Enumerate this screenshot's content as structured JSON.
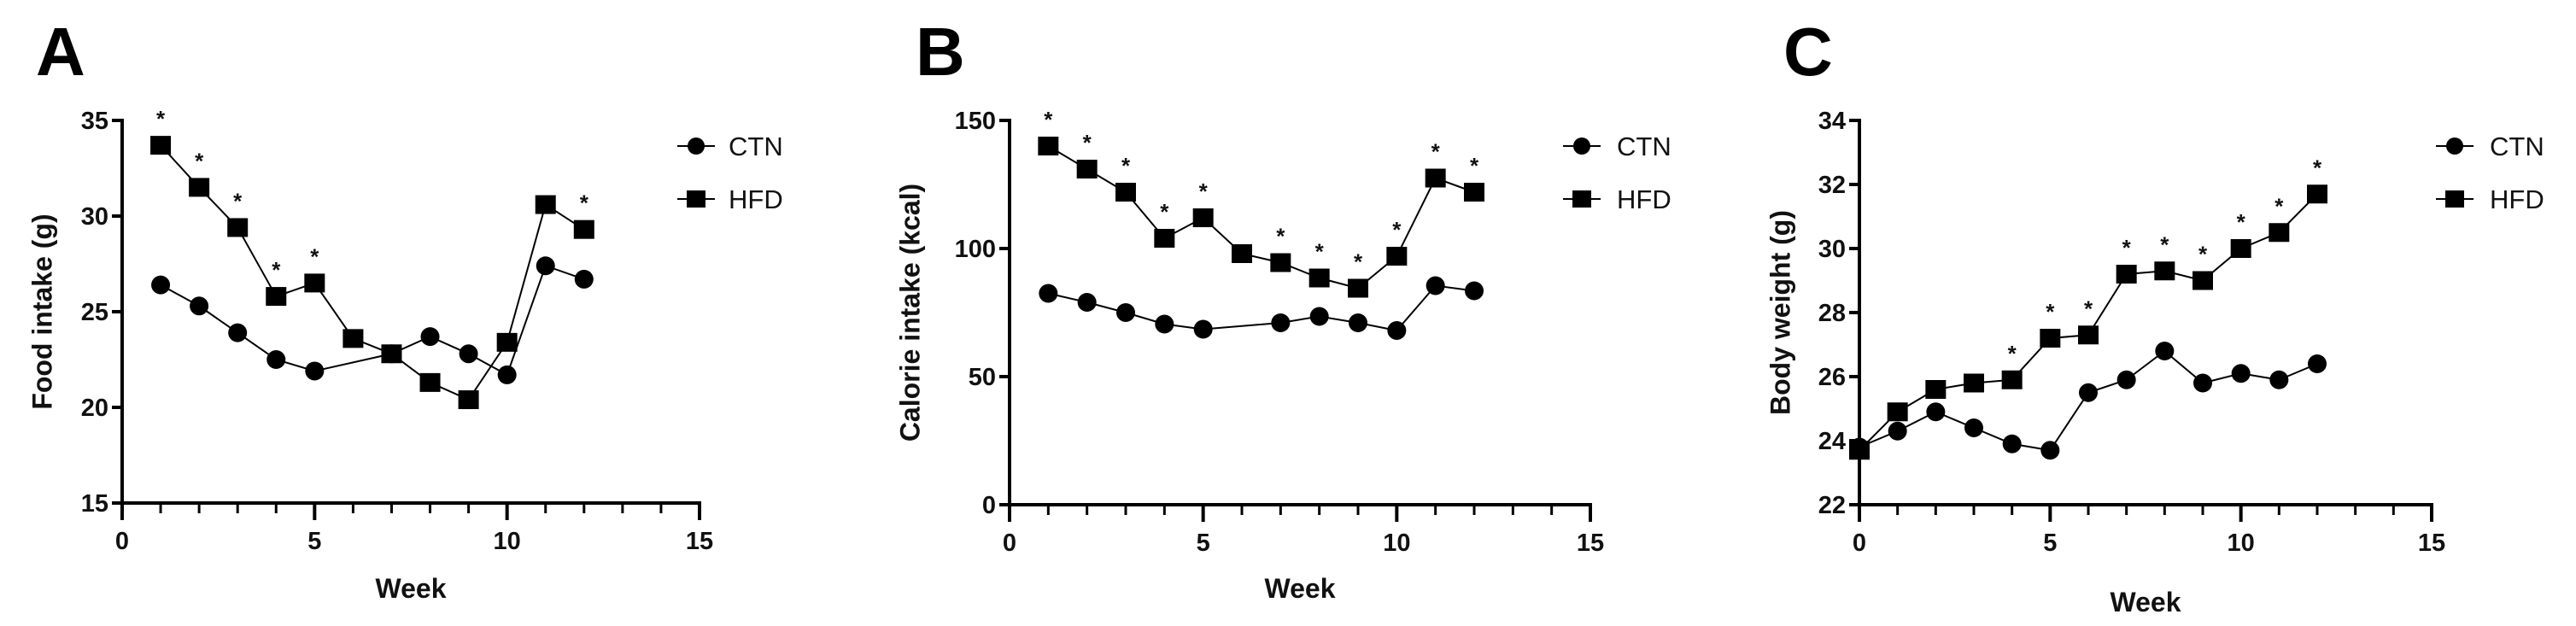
{
  "chart_data": [
    {
      "type": "line",
      "panel_label": "A",
      "xlabel": "Week",
      "ylabel": "Food intake (g)",
      "xlim": [
        0,
        15
      ],
      "ylim": [
        15,
        35
      ],
      "xticks": [
        0,
        5,
        10,
        15
      ],
      "yticks": [
        15,
        20,
        25,
        30,
        35
      ],
      "legend_position": "top-right",
      "series": [
        {
          "name": "CTN",
          "marker": "circle",
          "x": [
            1,
            2,
            3,
            4,
            5,
            7,
            8,
            9,
            10,
            11,
            12
          ],
          "values": [
            26.4,
            25.3,
            23.9,
            22.5,
            21.9,
            22.8,
            23.7,
            22.8,
            21.7,
            27.4,
            26.7
          ]
        },
        {
          "name": "HFD",
          "marker": "square",
          "x": [
            1,
            2,
            3,
            4,
            5,
            6,
            7,
            8,
            9,
            10,
            11,
            12
          ],
          "values": [
            33.7,
            31.5,
            29.4,
            25.8,
            26.5,
            23.6,
            22.8,
            21.3,
            20.4,
            23.4,
            30.6,
            29.3
          ]
        }
      ],
      "significance_marker": "*",
      "significant_weeks": [
        1,
        2,
        3,
        4,
        5,
        12
      ]
    },
    {
      "type": "line",
      "panel_label": "B",
      "xlabel": "Week",
      "ylabel": "Calorie intake (kcal)",
      "xlim": [
        0,
        15
      ],
      "ylim": [
        0,
        150
      ],
      "xticks": [
        0,
        5,
        10,
        15
      ],
      "yticks": [
        0,
        50,
        100,
        150
      ],
      "legend_position": "top-right",
      "series": [
        {
          "name": "CTN",
          "marker": "circle",
          "x": [
            1,
            2,
            3,
            4,
            5,
            7,
            8,
            9,
            10,
            11,
            12
          ],
          "values": [
            82.5,
            79,
            75,
            70.5,
            68.5,
            71,
            73.5,
            71,
            68,
            85.5,
            83.5
          ]
        },
        {
          "name": "HFD",
          "marker": "square",
          "x": [
            1,
            2,
            3,
            4,
            5,
            6,
            7,
            8,
            9,
            10,
            11,
            12
          ],
          "values": [
            140,
            131,
            122,
            104,
            112,
            98,
            94.5,
            88.5,
            84.5,
            97,
            127.5,
            122
          ]
        }
      ],
      "significance_marker": "*",
      "significant_weeks": [
        1,
        2,
        3,
        4,
        5,
        7,
        8,
        9,
        10,
        11,
        12
      ]
    },
    {
      "type": "line",
      "panel_label": "C",
      "xlabel": "Week",
      "ylabel": "Body weight (g)",
      "xlim": [
        0,
        15
      ],
      "ylim": [
        22,
        34
      ],
      "xticks": [
        0,
        5,
        10,
        15
      ],
      "yticks": [
        22,
        24,
        26,
        28,
        30,
        32,
        34
      ],
      "legend_position": "top-right",
      "series": [
        {
          "name": "CTN",
          "marker": "circle",
          "x": [
            0,
            1,
            2,
            3,
            4,
            5,
            6,
            7,
            8,
            9,
            10,
            11,
            12
          ],
          "values": [
            23.8,
            24.3,
            24.9,
            24.4,
            23.9,
            23.7,
            25.5,
            25.9,
            26.8,
            25.8,
            26.1,
            25.9,
            26.4
          ]
        },
        {
          "name": "HFD",
          "marker": "square",
          "x": [
            0,
            1,
            2,
            3,
            4,
            5,
            6,
            7,
            8,
            9,
            10,
            11,
            12
          ],
          "values": [
            23.7,
            24.9,
            25.6,
            25.8,
            25.9,
            27.2,
            27.3,
            29.2,
            29.3,
            29.0,
            30.0,
            30.5,
            31.7
          ]
        }
      ],
      "significance_marker": "*",
      "significant_weeks": [
        4,
        5,
        6,
        7,
        8,
        9,
        10,
        11,
        12
      ]
    }
  ]
}
